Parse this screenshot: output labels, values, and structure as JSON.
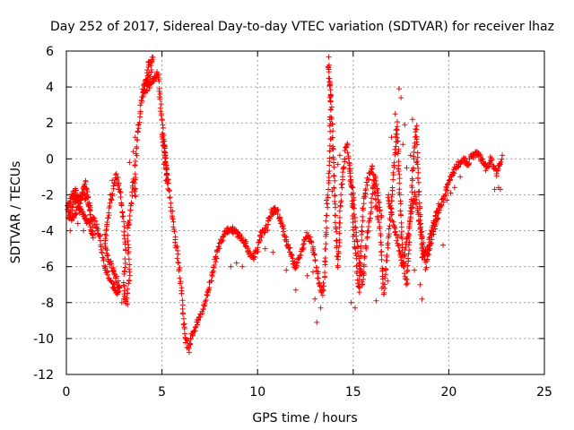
{
  "chart_data": {
    "type": "scatter",
    "title": "Day 252 of 2017, Sidereal Day-to-day VTEC variation (SDTVAR) for receiver lhaz",
    "xlabel": "GPS time / hours",
    "ylabel": "SDTVAR / TECUs",
    "xlim": [
      0,
      25
    ],
    "ylim": [
      -12,
      6
    ],
    "x_ticks": [
      "0",
      "5",
      "10",
      "15",
      "20",
      "25"
    ],
    "y_ticks": [
      "-12",
      "-10",
      "-8",
      "-6",
      "-4",
      "-2",
      "0",
      "2",
      "4",
      "6"
    ],
    "grid": true,
    "marker": "+",
    "color": "#ff0000",
    "series": [
      {
        "name": "SDTVAR",
        "path": [
          [
            0.0,
            -3.0
          ],
          [
            0.2,
            -2.2
          ],
          [
            0.5,
            -1.8
          ],
          [
            0.7,
            -2.6
          ],
          [
            0.9,
            -1.6
          ],
          [
            1.0,
            -1.3
          ],
          [
            1.2,
            -2.5
          ],
          [
            1.4,
            -4.2
          ],
          [
            1.2,
            -3.6
          ],
          [
            0.9,
            -3.2
          ],
          [
            0.6,
            -2.7
          ],
          [
            0.3,
            -3.4
          ],
          [
            0.1,
            -3.1
          ],
          [
            0.4,
            -2.4
          ],
          [
            0.8,
            -2.0
          ],
          [
            1.1,
            -2.2
          ],
          [
            1.3,
            -3.2
          ],
          [
            1.6,
            -3.8
          ],
          [
            1.8,
            -4.5
          ],
          [
            1.9,
            -5.5
          ],
          [
            2.0,
            -6.0
          ],
          [
            2.2,
            -6.5
          ],
          [
            2.4,
            -7.0
          ],
          [
            2.6,
            -7.5
          ],
          [
            2.8,
            -7.2
          ],
          [
            2.5,
            -6.3
          ],
          [
            2.2,
            -5.6
          ],
          [
            2.0,
            -4.8
          ],
          [
            2.1,
            -3.8
          ],
          [
            2.3,
            -2.5
          ],
          [
            2.5,
            -1.5
          ],
          [
            2.6,
            -0.9
          ],
          [
            2.8,
            -1.8
          ],
          [
            3.0,
            -3.5
          ],
          [
            3.1,
            -5.0
          ],
          [
            3.0,
            -7.0
          ],
          [
            3.1,
            -8.2
          ],
          [
            3.3,
            -6.5
          ],
          [
            3.2,
            -4.0
          ],
          [
            3.4,
            -2.5
          ],
          [
            3.5,
            -1.0
          ],
          [
            3.6,
            -2.2
          ],
          [
            3.6,
            -0.5
          ],
          [
            3.7,
            1.0
          ],
          [
            3.8,
            2.0
          ],
          [
            3.9,
            3.0
          ],
          [
            4.0,
            3.8
          ],
          [
            4.2,
            4.5
          ],
          [
            4.3,
            5.2
          ],
          [
            4.5,
            5.7
          ],
          [
            4.4,
            4.8
          ],
          [
            4.2,
            4.2
          ],
          [
            4.0,
            3.6
          ],
          [
            4.8,
            4.8
          ],
          [
            4.9,
            3.5
          ],
          [
            5.0,
            2.2
          ],
          [
            5.1,
            1.0
          ],
          [
            5.2,
            0.0
          ],
          [
            5.3,
            -1.5
          ],
          [
            5.1,
            0.5
          ],
          [
            5.0,
            1.5
          ],
          [
            6.0,
            -7.0
          ],
          [
            6.1,
            -8.5
          ],
          [
            6.2,
            -9.8
          ],
          [
            6.4,
            -10.6
          ],
          [
            6.5,
            -10.0
          ],
          [
            6.7,
            -9.5
          ],
          [
            6.9,
            -9.0
          ],
          [
            7.1,
            -8.5
          ],
          [
            7.3,
            -7.8
          ],
          [
            7.5,
            -7.0
          ],
          [
            7.7,
            -6.0
          ],
          [
            7.9,
            -5.2
          ],
          [
            8.1,
            -4.5
          ],
          [
            8.3,
            -4.0
          ],
          [
            8.6,
            -3.9
          ],
          [
            9.0,
            -4.2
          ],
          [
            9.4,
            -4.8
          ],
          [
            9.7,
            -5.5
          ],
          [
            10.0,
            -5.0
          ],
          [
            10.2,
            -4.2
          ],
          [
            10.5,
            -3.8
          ],
          [
            10.7,
            -3.0
          ],
          [
            11.0,
            -2.8
          ],
          [
            11.2,
            -3.5
          ],
          [
            11.5,
            -4.5
          ],
          [
            11.8,
            -5.5
          ],
          [
            12.0,
            -6.0
          ],
          [
            12.2,
            -5.5
          ],
          [
            12.4,
            -4.8
          ],
          [
            12.6,
            -4.2
          ],
          [
            12.8,
            -4.5
          ],
          [
            13.0,
            -5.5
          ],
          [
            13.2,
            -6.8
          ],
          [
            13.4,
            -7.5
          ],
          [
            13.5,
            -6.5
          ],
          [
            13.6,
            -3.5
          ],
          [
            13.7,
            -1.5
          ],
          [
            13.8,
            1.0
          ],
          [
            13.8,
            3.5
          ],
          [
            13.7,
            5.5
          ],
          [
            13.9,
            2.0
          ],
          [
            14.0,
            -1.0
          ],
          [
            14.1,
            -4.0
          ],
          [
            14.2,
            -6.0
          ],
          [
            14.3,
            -3.5
          ],
          [
            14.4,
            -1.5
          ],
          [
            14.6,
            0.5
          ],
          [
            14.7,
            0.8
          ],
          [
            14.9,
            -1.5
          ],
          [
            15.0,
            -4.0
          ],
          [
            15.2,
            -6.0
          ],
          [
            15.3,
            -7.5
          ],
          [
            15.4,
            -5.0
          ],
          [
            15.5,
            -3.0
          ],
          [
            15.6,
            -2.0
          ],
          [
            15.8,
            -1.0
          ],
          [
            16.0,
            -0.5
          ],
          [
            16.2,
            -2.5
          ],
          [
            16.4,
            -4.0
          ],
          [
            16.5,
            -5.5
          ],
          [
            16.6,
            -7.5
          ],
          [
            16.8,
            -5.0
          ],
          [
            17.0,
            -2.5
          ],
          [
            17.1,
            -1.0
          ],
          [
            17.2,
            0.5
          ],
          [
            17.3,
            2.0
          ],
          [
            17.4,
            -1.0
          ],
          [
            17.5,
            -3.5
          ],
          [
            17.6,
            -5.5
          ],
          [
            17.8,
            -7.0
          ],
          [
            17.9,
            -5.0
          ],
          [
            18.0,
            -3.0
          ],
          [
            18.1,
            -1.0
          ],
          [
            18.2,
            0.5
          ],
          [
            18.3,
            1.8
          ],
          [
            18.4,
            -1.0
          ],
          [
            18.5,
            -3.5
          ],
          [
            18.6,
            -5.5
          ],
          [
            18.8,
            -5.2
          ],
          [
            19.0,
            -4.5
          ],
          [
            19.2,
            -3.5
          ],
          [
            19.4,
            -3.0
          ],
          [
            19.6,
            -2.5
          ],
          [
            19.8,
            -2.0
          ],
          [
            20.0,
            -1.2
          ],
          [
            20.2,
            -0.8
          ],
          [
            20.4,
            -0.5
          ],
          [
            20.6,
            -0.2
          ],
          [
            20.8,
            0.0
          ],
          [
            21.0,
            -0.3
          ],
          [
            21.2,
            0.2
          ],
          [
            21.5,
            0.3
          ],
          [
            21.8,
            -0.2
          ],
          [
            22.0,
            -0.6
          ],
          [
            22.2,
            0.0
          ],
          [
            22.5,
            -0.8
          ],
          [
            22.8,
            0.1
          ],
          [
            16.8,
            -2.0
          ],
          [
            17.0,
            -3.0
          ],
          [
            17.2,
            -4.0
          ],
          [
            17.4,
            -5.0
          ],
          [
            17.6,
            -6.0
          ],
          [
            17.9,
            -4.0
          ],
          [
            18.2,
            -2.0
          ],
          [
            18.4,
            -3.0
          ],
          [
            18.6,
            -4.5
          ],
          [
            18.8,
            -6.0
          ],
          [
            19.0,
            -5.0
          ],
          [
            19.2,
            -4.0
          ],
          [
            19.4,
            -3.5
          ],
          [
            19.5,
            -2.5
          ],
          [
            14.8,
            -0.5
          ],
          [
            15.0,
            -2.0
          ],
          [
            15.1,
            -3.5
          ],
          [
            15.3,
            -5.5
          ],
          [
            15.5,
            -7.0
          ],
          [
            15.7,
            -4.5
          ],
          [
            15.9,
            -3.0
          ],
          [
            16.1,
            -1.0
          ],
          [
            16.3,
            -2.0
          ],
          [
            16.5,
            -3.5
          ]
        ],
        "scatter_points": [
          [
            13.0,
            -7.8
          ],
          [
            13.3,
            -8.3
          ],
          [
            13.1,
            -9.1
          ],
          [
            14.9,
            -8.0
          ],
          [
            15.1,
            -8.3
          ],
          [
            16.2,
            -7.9
          ],
          [
            16.5,
            -7.2
          ],
          [
            16.8,
            -6.8
          ],
          [
            17.0,
            1.2
          ],
          [
            17.3,
            1.8
          ],
          [
            17.6,
            0.8
          ],
          [
            17.8,
            -0.5
          ],
          [
            17.7,
            1.9
          ],
          [
            17.4,
            3.9
          ],
          [
            17.5,
            3.4
          ],
          [
            17.2,
            2.5
          ],
          [
            18.1,
            2.2
          ],
          [
            18.0,
            0.2
          ],
          [
            18.3,
            -0.2
          ],
          [
            18.6,
            -7.8
          ],
          [
            18.5,
            -7.0
          ],
          [
            18.2,
            -6.2
          ],
          [
            14.2,
            -0.3
          ],
          [
            14.3,
            0.2
          ],
          [
            14.5,
            -0.5
          ],
          [
            13.9,
            -1.8
          ],
          [
            13.6,
            -2.3
          ],
          [
            12.9,
            -6.3
          ],
          [
            12.6,
            -6.5
          ],
          [
            12.0,
            -7.3
          ],
          [
            11.5,
            -6.2
          ],
          [
            10.8,
            -5.2
          ],
          [
            10.4,
            -5.0
          ],
          [
            9.8,
            -5.6
          ],
          [
            9.5,
            -5.2
          ],
          [
            9.2,
            -6.0
          ],
          [
            8.9,
            -5.8
          ],
          [
            8.6,
            -6.0
          ],
          [
            19.7,
            -4.8
          ],
          [
            19.9,
            -2.3
          ],
          [
            20.1,
            -1.9
          ],
          [
            20.3,
            -1.6
          ],
          [
            20.6,
            -1.0
          ],
          [
            22.4,
            -1.7
          ],
          [
            22.6,
            -1.6
          ],
          [
            22.7,
            -1.7
          ],
          [
            2.9,
            -8.0
          ],
          [
            3.0,
            -7.8
          ],
          [
            3.2,
            -8.1
          ],
          [
            2.7,
            -7.4
          ],
          [
            2.5,
            -7.0
          ],
          [
            2.3,
            -2.0
          ],
          [
            2.4,
            -1.2
          ],
          [
            1.5,
            -4.2
          ],
          [
            1.4,
            -4.4
          ],
          [
            0.9,
            -4.0
          ],
          [
            0.2,
            -4.0
          ],
          [
            0.6,
            -3.6
          ],
          [
            3.6,
            1.2
          ],
          [
            3.5,
            0.4
          ],
          [
            3.3,
            -0.2
          ],
          [
            5.2,
            -1.2
          ],
          [
            5.1,
            -0.3
          ]
        ]
      }
    ]
  }
}
